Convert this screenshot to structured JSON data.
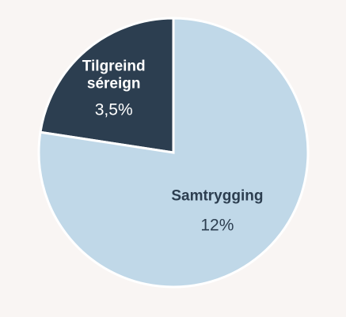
{
  "chart_data": {
    "type": "pie",
    "title": "",
    "slices": [
      {
        "label_lines": [
          "Tilgreind",
          "séreign"
        ],
        "value": 3.5,
        "value_label": "3,5%",
        "color": "#2c3e50",
        "text_color": "#ffffff"
      },
      {
        "label_lines": [
          "Samtrygging"
        ],
        "value": 12,
        "value_label": "12%",
        "color": "#c0d8e8",
        "text_color": "#2c3e50"
      }
    ],
    "start_angle_deg": 0,
    "direction": "counterclockwise",
    "legend": "none"
  },
  "colors": {
    "background": "#f9f5f3",
    "slice_border": "#ffffff"
  }
}
